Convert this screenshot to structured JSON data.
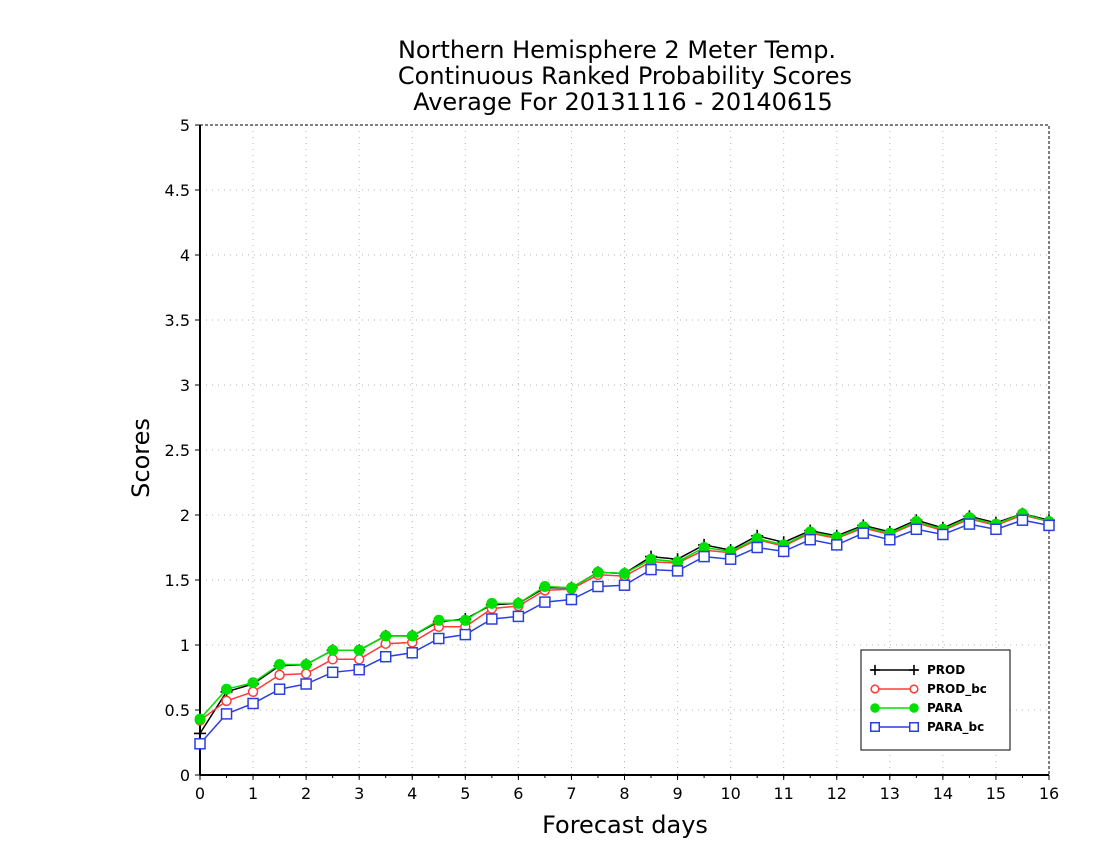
{
  "chart_data": {
    "type": "line",
    "title": [
      "Northern Hemisphere 2 Meter Temp.",
      "Continuous Ranked Probability Scores",
      "Average For 20131116 - 20140615"
    ],
    "xlabel": "Forecast days",
    "ylabel": "Scores",
    "xlim": [
      0,
      16
    ],
    "ylim": [
      0,
      5
    ],
    "xticks": [
      0,
      1,
      2,
      3,
      4,
      5,
      6,
      7,
      8,
      9,
      10,
      11,
      12,
      13,
      14,
      15,
      16
    ],
    "xtick_labels": [
      "0",
      "1",
      "2",
      "3",
      "4",
      "5",
      "6",
      "7",
      "8",
      "9",
      "10",
      "11",
      "12",
      "13",
      "14",
      "15",
      "16"
    ],
    "yticks": [
      0,
      0.5,
      1,
      1.5,
      2,
      2.5,
      3,
      3.5,
      4,
      4.5,
      5
    ],
    "ytick_labels": [
      "0",
      "0.5",
      "1",
      "1.5",
      "2",
      "2.5",
      "3",
      "3.5",
      "4",
      "4.5",
      "5"
    ],
    "grid": true,
    "legend_position": "bottom-right",
    "x": [
      0,
      0.5,
      1,
      1.5,
      2,
      2.5,
      3,
      3.5,
      4,
      4.5,
      5,
      5.5,
      6,
      6.5,
      7,
      7.5,
      8,
      8.5,
      9,
      9.5,
      10,
      10.5,
      11,
      11.5,
      12,
      12.5,
      13,
      13.5,
      14,
      14.5,
      15,
      15.5,
      16
    ],
    "series": [
      {
        "name": "PROD",
        "color": "#000000",
        "marker": "plus",
        "values": [
          0.32,
          0.64,
          0.7,
          0.84,
          0.85,
          0.96,
          0.96,
          1.07,
          1.07,
          1.18,
          1.2,
          1.31,
          1.32,
          1.44,
          1.44,
          1.56,
          1.55,
          1.68,
          1.66,
          1.77,
          1.73,
          1.84,
          1.79,
          1.88,
          1.84,
          1.92,
          1.87,
          1.96,
          1.9,
          1.99,
          1.94,
          2.01,
          1.96
        ]
      },
      {
        "name": "PROD_bc",
        "color": "#ff3b3b",
        "marker": "open-circle",
        "values": [
          0.42,
          0.57,
          0.64,
          0.77,
          0.78,
          0.89,
          0.89,
          1.01,
          1.02,
          1.14,
          1.14,
          1.28,
          1.3,
          1.42,
          1.43,
          1.54,
          1.53,
          1.64,
          1.63,
          1.73,
          1.71,
          1.81,
          1.76,
          1.86,
          1.82,
          1.9,
          1.85,
          1.94,
          1.88,
          1.97,
          1.92,
          2.0,
          1.95
        ]
      },
      {
        "name": "PARA",
        "color": "#00e000",
        "marker": "filled-circle",
        "values": [
          0.43,
          0.66,
          0.71,
          0.85,
          0.85,
          0.96,
          0.96,
          1.07,
          1.07,
          1.19,
          1.19,
          1.32,
          1.32,
          1.45,
          1.44,
          1.56,
          1.55,
          1.66,
          1.64,
          1.75,
          1.72,
          1.82,
          1.77,
          1.87,
          1.83,
          1.91,
          1.86,
          1.95,
          1.89,
          1.98,
          1.93,
          2.01,
          1.95
        ]
      },
      {
        "name": "PARA_bc",
        "color": "#2a3fe0",
        "marker": "open-square",
        "values": [
          0.24,
          0.47,
          0.55,
          0.66,
          0.7,
          0.79,
          0.81,
          0.91,
          0.94,
          1.05,
          1.08,
          1.2,
          1.22,
          1.33,
          1.35,
          1.45,
          1.46,
          1.58,
          1.57,
          1.68,
          1.66,
          1.75,
          1.72,
          1.81,
          1.77,
          1.86,
          1.81,
          1.89,
          1.85,
          1.93,
          1.89,
          1.96,
          1.92
        ]
      }
    ]
  }
}
